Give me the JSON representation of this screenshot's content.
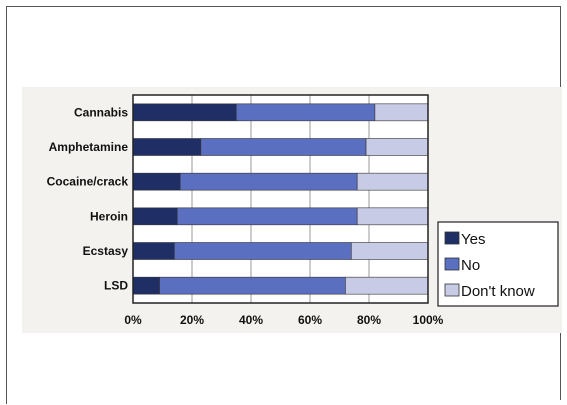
{
  "chart_data": {
    "type": "bar",
    "orientation": "horizontal",
    "stacked": true,
    "categories": [
      "Cannabis",
      "Amphetamine",
      "Cocaine/crack",
      "Heroin",
      "Ecstasy",
      "LSD"
    ],
    "series": [
      {
        "name": "Yes",
        "values": [
          35,
          23,
          16,
          15,
          14,
          9
        ],
        "color": "#1f2f66"
      },
      {
        "name": "No",
        "values": [
          47,
          56,
          60,
          61,
          60,
          63
        ],
        "color": "#5b6fc0"
      },
      {
        "name": "Don't know",
        "values": [
          18,
          21,
          24,
          24,
          26,
          28
        ],
        "color": "#c8cbe6"
      }
    ],
    "xlim": [
      0,
      100
    ],
    "xticks": [
      "0%",
      "20%",
      "40%",
      "60%",
      "80%",
      "100%"
    ],
    "grid": true,
    "legend_position": "right"
  }
}
